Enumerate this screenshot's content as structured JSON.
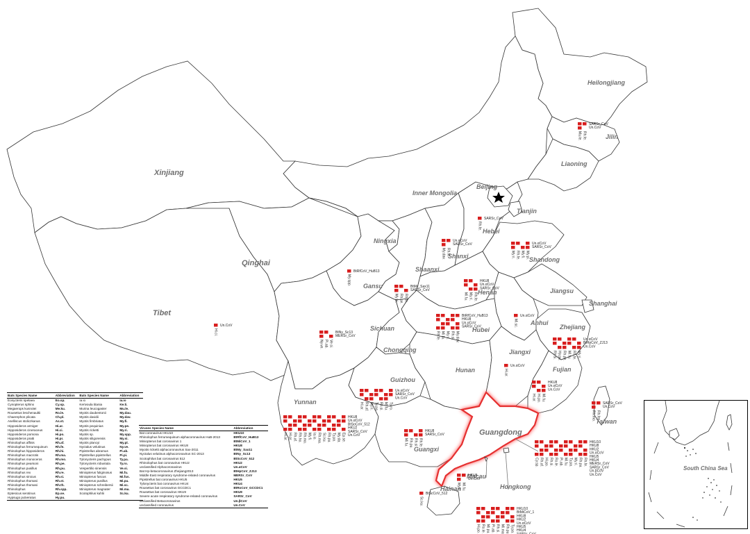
{
  "provinces": {
    "heilongjiang": "Heilongjiang",
    "jilin": "Jilin",
    "liaoning": "Liaoning",
    "xinjiang": "Xinjiang",
    "inner_mongolia": "Inner Mongolia",
    "beijing": "Beijing",
    "tianjin": "Tianjin",
    "hebei": "Hebei",
    "shandong": "Shandong",
    "ningxia": "Ningxia",
    "shanxi": "Shanxi",
    "qinghai": "Qinghai",
    "shaanxi": "Shaanxi",
    "gansu": "Gansu",
    "henan": "Henan",
    "jiangsu": "Jiangsu",
    "shanghai": "Shanghai",
    "tibet": "Tibet",
    "sichuan": "Sichuan",
    "hubei": "Hubei",
    "anhui": "Anhui",
    "zhejiang": "Zhejiang",
    "chongqing": "Chongqing",
    "jiangxi": "Jiangxi",
    "hunan": "Hunan",
    "guizhou": "Guizhou",
    "fujian": "Fujian",
    "yunnan": "Yunnan",
    "taiwan": "Taiwan",
    "guangxi": "Guangxi",
    "guangdong": "Guangdong",
    "macau": "Macau",
    "hongkong": "Hongkong",
    "hainan": "Hainan",
    "south_china_sea": "South China Sea"
  },
  "colors": {
    "marker": "#d81e1e",
    "highlight": "#e53030",
    "label": "#6e6e6e"
  },
  "star_icon": "capital-star",
  "sites": {
    "heilongjiang": {
      "viruses": [
        "SARSr_CoV",
        "Un.CoV"
      ],
      "bats": [
        "Mu.le.",
        "Rh.fe."
      ]
    },
    "hebei": {
      "viruses": [
        "SARSr_CoV"
      ],
      "bats": [
        "Rh.fe."
      ]
    },
    "shanxi": {
      "viruses": [
        "Un.αCoV",
        "SARSr_CoV"
      ],
      "bats": [
        "My.dav.",
        "Rh.fe."
      ]
    },
    "shandong": {
      "viruses": [
        "Un.αCoV",
        "SARSr_CoV"
      ],
      "bats": [
        "My.ri.",
        "Rh.fe.",
        "My.fi.",
        "My.pi."
      ]
    },
    "gansu": {
      "viruses": [
        "BtRfCoV_HuB13"
      ],
      "bats": [
        "My.spp."
      ]
    },
    "shaanxi": {
      "viruses": [
        "BtMy_Sax11",
        "SARSr_CoV"
      ],
      "bats": [
        "My.pi.",
        "Rh.pe.",
        "Rh.fe."
      ]
    },
    "henan": {
      "viruses": [
        "HKU8",
        "Un.αCoV",
        "SARSr_CoV"
      ],
      "bats": [
        "Mi.fu.",
        "My.ri.",
        "Rh.fe."
      ]
    },
    "hubei": {
      "viruses": [
        "BtRfCoV_HuB13",
        "HKU8",
        "Un.αCoV",
        "SARSr_CoV"
      ],
      "bats": [
        "Rh.fe.",
        "Mi.fu.",
        "My.ri.",
        "Rh.si.",
        "My.dav."
      ]
    },
    "sichuan": {
      "viruses": [
        "BtNy_Sc13",
        "MERSr_CoV"
      ],
      "bats": [
        "Ny.ve.",
        "Pi.ab.",
        "Ve.si."
      ]
    },
    "tibet": {
      "viruses": [
        "Un.CoV"
      ],
      "bats": [
        "Hi.ci."
      ]
    },
    "anhui": {
      "viruses": [
        "Un.αCoV"
      ],
      "bats": [
        "Mi.sc."
      ]
    },
    "zhejiang": {
      "viruses": [
        "Un.αCoV",
        "BtHpCoV_ZJ13",
        "Un.CoV"
      ],
      "bats": [
        "Rh.si.",
        "Hy.pu.",
        "Rh.pe.",
        "Mi.fu.",
        "Rh.fe.",
        "My.ri."
      ]
    },
    "jiangxi": {
      "viruses": [
        "Un.αCoV"
      ],
      "bats": [
        "Hi.ar."
      ]
    },
    "fujian": {
      "viruses": [
        "HKU8",
        "Un.αCoV",
        "Un.CoV"
      ],
      "bats": [
        "Hi.ar.",
        "Hi.po.",
        "Mi.fu."
      ]
    },
    "guizhou": {
      "viruses": [
        "Un.αCoV",
        "SARSr_CoV",
        "Un.CoV"
      ],
      "bats": [
        "Hi.ar.",
        "Rh.af.",
        "My.ri.",
        "Ty.pa.",
        "Rh.si.",
        "Mi.fu.",
        "Ty.ro."
      ]
    },
    "yunnan": {
      "viruses": [
        "HKU8",
        "Un.αCoV",
        "BtSoCoV_512",
        "HKU2",
        "SARSr_CoV",
        "Un.CoV"
      ],
      "bats": [
        "Hi.ar.",
        "Hi.pr.",
        "Rh.af.",
        "Rh.ho.",
        "Rh.mo.",
        "My.fi.",
        "Ia.io.",
        "Rh.ma.",
        "Sc.ku.",
        "Rh.pu.",
        "Ty.pa.",
        "My.da.",
        "Ep.se."
      ]
    },
    "guangxi": {
      "viruses": [
        "HKU8",
        "SARSr_CoV"
      ],
      "bats": [
        "Mi.fu.",
        "Rh.pu.",
        "Rh.si.",
        "Rh.fe."
      ]
    },
    "taiwan": {
      "viruses": [
        "SARSr_CoV",
        "Un.CoV"
      ],
      "bats": [
        "Rh.mo.",
        "Rh.fe."
      ]
    },
    "macau": {
      "viruses": [
        "HKU8",
        "Un.CoV"
      ],
      "bats": [
        "My.ri.",
        "Mi.fu."
      ]
    },
    "hainan": {
      "viruses": [
        "BtScCoV_512"
      ],
      "bats": [
        "Sc.ku."
      ]
    },
    "guangdong": {
      "viruses": [
        "HKU10",
        "HKU8",
        "HKU2",
        "Un.αCoV",
        "HKU5",
        "HKU4",
        "MERSr_CoV",
        "SARSr_CoV",
        "Un.βCoV",
        "Un.CoV"
      ],
      "bats": [
        "Cy.sp.",
        "Rh.af.",
        "Hi.po.",
        "Rh.si.",
        "Ro.le.",
        "Pi.ab.",
        "Mi.fu.",
        "Ty.pa.",
        "My.ri.",
        "Rh.pu.",
        "Rh.fe."
      ]
    },
    "hongkong": {
      "viruses": [
        "HKU10",
        "BtMiCoV_1",
        "HKU8",
        "HKU2",
        "Un.αCoV",
        "HKU5",
        "HKU4",
        "SARSr_CoV"
      ],
      "bats": [
        "Hi.po.",
        "Ro.le.",
        "Mi.pu.",
        "Pi.ab.",
        "Rh.si.",
        "Mi.ma.",
        "Rh.pu.",
        "Ty.pa."
      ]
    }
  },
  "bats_table": {
    "headers": [
      "Bats Species Name",
      "Abbreviation",
      "Bats Species Name",
      "Abbreviation"
    ],
    "rows": [
      [
        "Eonycteris spelaea",
        "Eo.sp.",
        "Ia io",
        "Ia.io"
      ],
      [
        "Cynopterus sphinx",
        "Cy.sp.",
        "Kerivoula titania",
        "Ke.ti."
      ],
      [
        "Megaerops kusnotei",
        "Me.ku.",
        "Murina leucogaster",
        "Mu.le."
      ],
      [
        "Rousettus leschenaultii",
        "Ro.le.",
        "Myotis daubentonii",
        "My.dau."
      ],
      [
        "Chaerephon plicata",
        "Ch.pl.",
        "Myotis davidii",
        "My.dav."
      ],
      [
        "Aselliscus stoliczkanus",
        "As.st.",
        "Myotis fimbriatus",
        "My.fi."
      ],
      [
        "Hipposideros armiger",
        "Hi.ar.",
        "Myotis pequinius",
        "My.pe."
      ],
      [
        "Hipposideros cineraceus",
        "Hi.ci.",
        "Myotis ricketti",
        "My.ri."
      ],
      [
        "Hipposideros pomona",
        "Hi.po.",
        "Myotis sp.",
        "My.spp."
      ],
      [
        "Hipposideros pratti",
        "Hi.pr.",
        "Myotis siligorensis",
        "My.si."
      ],
      [
        "Rhinolophus affinis",
        "Rh.af.",
        "Myotis plancyi",
        "My.pl."
      ],
      [
        "Rhinolophus ferrumequinum",
        "Rh.fe.",
        "Nyctalus velutinus",
        "Ny.ve."
      ],
      [
        "Rhinolophus hipposideros",
        "Rh.hi.",
        "Pipistrellus abramus",
        "Pi.ab."
      ],
      [
        "Rhinolophus macrotis",
        "Rh.ma.",
        "Pipistrellus pipistrellus",
        "Pi.pi."
      ],
      [
        "Rhinolophus monoceros",
        "Rh.mo.",
        "Tylonycteris pachypus",
        "Ty.pa."
      ],
      [
        "Rhinolophus pearsoni",
        "Rh.pe.",
        "Tylonycteris robustula",
        "Ty.ro."
      ],
      [
        "Rhinolophus pusillus",
        "Rh.pu.",
        "Vespertilio sinensis",
        "Ve.si."
      ],
      [
        "Rhinolophus rex",
        "Rh.re.",
        "Miniopterus fuliginosus",
        "Mi.fu."
      ],
      [
        "Rhinolophus sinicus",
        "Rh.si.",
        "Miniopterus fuscus",
        "Mi.fus."
      ],
      [
        "Rhinolophus thomasi",
        "Rh.st.",
        "Miniopterus pusillus",
        "Mi.pu."
      ],
      [
        "Rhinolophus thomasi",
        "Rh.th.",
        "Miniopterus schreibersii",
        "Mi.sc."
      ],
      [
        "Rhinolophus",
        "Rh.spp.",
        "Miniopterus magnater",
        "Mi.ma."
      ],
      [
        "Eptesicus serotinus",
        "Ep.se.",
        "Scotophilus kuhlii",
        "Sc.ku."
      ],
      [
        "Hypsugo pulveratus",
        "Hy.pu.",
        "",
        ""
      ]
    ]
  },
  "virus_table": {
    "headers": [
      "Viruses Species Name",
      "Abbreviation"
    ],
    "rows": [
      [
        "Bat coronavirus HKU10",
        "HKU10"
      ],
      [
        "Rhinolophus ferrumequinum alphacoronavirus HuB-2013",
        "BtRfCoV_HuB13"
      ],
      [
        "Miniopterus bat coronavirus 1",
        "BtMiCoV_1"
      ],
      [
        "Miniopterus bat coronavirus HKU8",
        "HKU8"
      ],
      [
        "Myotis ricketti alphacoronavirus Sax-2011",
        "BtMy_Sax11"
      ],
      [
        "Nyctalus velutinus alphacoronavirus SC-2013",
        "BtNy_Sc13"
      ],
      [
        "Scotophilus bat coronavirus 512",
        "BtScCoV_512"
      ],
      [
        "Rhinolophus bat coronavirus HKU2",
        "HKU2"
      ],
      [
        "unclassified Alphacoronavirus",
        "Un.αCoV"
      ],
      [
        "Bat Hp-betacoronavirus Zhejiang2013",
        "BtHpCoV_ZJ13"
      ],
      [
        "Middle East respiratory syndrome-related coronavirus",
        "MERSr_CoV"
      ],
      [
        "Pipistrellus bat coronavirus HKU5",
        "HKU5"
      ],
      [
        "Tylonycteris bat coronavirus HKU4",
        "HKU4"
      ],
      [
        "Rousettus bat coronavirus GCCDC1",
        "BtRoCoV_GCCDC1"
      ],
      [
        "Rousettus bat coronavirus HKU9",
        "HKU9"
      ],
      [
        "Severe acute respiratory syndrome-related coronavirus",
        "SARSr_CoV"
      ],
      [
        "unclassified Betacoronavirus",
        "Un.βCoV"
      ],
      [
        "unclassified coronavirus",
        "Un.CoV"
      ]
    ]
  }
}
